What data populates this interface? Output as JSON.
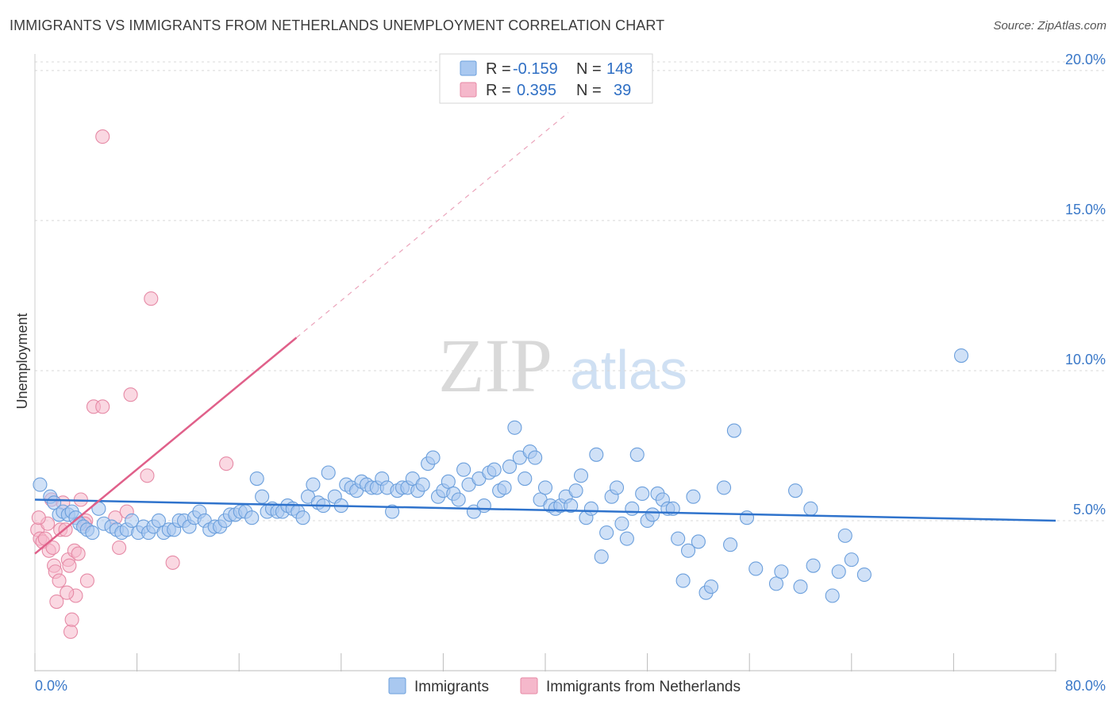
{
  "title": "IMMIGRANTS VS IMMIGRANTS FROM NETHERLANDS UNEMPLOYMENT CORRELATION CHART",
  "source": "Source: ZipAtlas.com",
  "watermark": {
    "zip": "ZIP",
    "atlas": "atlas"
  },
  "legend_top": [
    {
      "r_label": "R =",
      "r_value": "-0.159",
      "n_label": "N =",
      "n_value": "148",
      "color": "#a9c8f0"
    },
    {
      "r_label": "R =",
      "r_value": "0.395",
      "n_label": "N =",
      "n_value": "39",
      "color": "#f5b8cb"
    }
  ],
  "legend_bottom": [
    {
      "label": "Immigrants",
      "color": "#a9c8f0"
    },
    {
      "label": "Immigrants from Netherlands",
      "color": "#f5b8cb"
    }
  ],
  "colors": {
    "blue_fill": "#a9c8f0",
    "blue_stroke": "#6b9fdc",
    "blue_line": "#2f73cc",
    "pink_fill": "#f5b8cb",
    "pink_stroke": "#e68aa6",
    "pink_line": "#e0608a",
    "tick_text": "#3a78c8",
    "grid": "#d8d8d8"
  },
  "chart_data": {
    "type": "scatter",
    "title": "IMMIGRANTS VS IMMIGRANTS FROM NETHERLANDS UNEMPLOYMENT CORRELATION CHART",
    "xlabel": "",
    "ylabel": "Unemployment",
    "xlim": [
      0,
      80
    ],
    "ylim": [
      0,
      20.5
    ],
    "x_tick_labels": [
      "0.0%",
      "80.0%"
    ],
    "y_ticks": [
      5,
      10,
      15,
      20
    ],
    "y_tick_labels": [
      "5.0%",
      "10.0%",
      "15.0%",
      "20.0%"
    ],
    "grid": true,
    "series": [
      {
        "name": "Immigrants",
        "trend": {
          "x0": 0,
          "y0": 5.7,
          "x1": 80,
          "y1": 5.0
        },
        "points": [
          [
            0.4,
            6.2
          ],
          [
            1.2,
            5.8
          ],
          [
            1.5,
            5.6
          ],
          [
            1.9,
            5.2
          ],
          [
            2.2,
            5.3
          ],
          [
            2.6,
            5.2
          ],
          [
            2.9,
            5.3
          ],
          [
            3.2,
            5.1
          ],
          [
            3.5,
            4.9
          ],
          [
            3.8,
            4.8
          ],
          [
            4.1,
            4.7
          ],
          [
            4.5,
            4.6
          ],
          [
            5.0,
            5.4
          ],
          [
            5.4,
            4.9
          ],
          [
            6.0,
            4.8
          ],
          [
            6.4,
            4.7
          ],
          [
            6.8,
            4.6
          ],
          [
            7.2,
            4.7
          ],
          [
            7.6,
            5.0
          ],
          [
            8.1,
            4.6
          ],
          [
            8.5,
            4.8
          ],
          [
            8.9,
            4.6
          ],
          [
            9.3,
            4.8
          ],
          [
            9.7,
            5.0
          ],
          [
            10.1,
            4.6
          ],
          [
            10.5,
            4.7
          ],
          [
            10.9,
            4.7
          ],
          [
            11.3,
            5.0
          ],
          [
            11.7,
            5.0
          ],
          [
            12.1,
            4.8
          ],
          [
            12.5,
            5.1
          ],
          [
            12.9,
            5.3
          ],
          [
            13.3,
            5.0
          ],
          [
            13.7,
            4.7
          ],
          [
            14.1,
            4.8
          ],
          [
            14.5,
            4.8
          ],
          [
            14.9,
            5.0
          ],
          [
            15.3,
            5.2
          ],
          [
            15.7,
            5.2
          ],
          [
            16.1,
            5.3
          ],
          [
            16.5,
            5.3
          ],
          [
            17.0,
            5.1
          ],
          [
            17.4,
            6.4
          ],
          [
            17.8,
            5.8
          ],
          [
            18.2,
            5.3
          ],
          [
            18.6,
            5.4
          ],
          [
            19.0,
            5.3
          ],
          [
            19.4,
            5.3
          ],
          [
            19.8,
            5.5
          ],
          [
            20.2,
            5.4
          ],
          [
            20.6,
            5.3
          ],
          [
            21.0,
            5.1
          ],
          [
            21.4,
            5.8
          ],
          [
            21.8,
            6.2
          ],
          [
            22.2,
            5.6
          ],
          [
            22.6,
            5.5
          ],
          [
            23.0,
            6.6
          ],
          [
            23.5,
            5.8
          ],
          [
            24.0,
            5.5
          ],
          [
            24.4,
            6.2
          ],
          [
            24.8,
            6.1
          ],
          [
            25.2,
            6.0
          ],
          [
            25.6,
            6.3
          ],
          [
            26.0,
            6.2
          ],
          [
            26.4,
            6.1
          ],
          [
            26.8,
            6.1
          ],
          [
            27.2,
            6.4
          ],
          [
            27.6,
            6.1
          ],
          [
            28.0,
            5.3
          ],
          [
            28.4,
            6.0
          ],
          [
            28.8,
            6.1
          ],
          [
            29.2,
            6.1
          ],
          [
            29.6,
            6.4
          ],
          [
            30.0,
            6.0
          ],
          [
            30.4,
            6.2
          ],
          [
            30.8,
            6.9
          ],
          [
            31.2,
            7.1
          ],
          [
            31.6,
            5.8
          ],
          [
            32.0,
            6.0
          ],
          [
            32.4,
            6.3
          ],
          [
            32.8,
            5.9
          ],
          [
            33.2,
            5.7
          ],
          [
            33.6,
            6.7
          ],
          [
            34.0,
            6.2
          ],
          [
            34.4,
            5.3
          ],
          [
            34.8,
            6.4
          ],
          [
            35.2,
            5.5
          ],
          [
            35.6,
            6.6
          ],
          [
            36.0,
            6.7
          ],
          [
            36.4,
            6.0
          ],
          [
            36.8,
            6.1
          ],
          [
            37.2,
            6.8
          ],
          [
            37.6,
            8.1
          ],
          [
            38.0,
            7.1
          ],
          [
            38.4,
            6.4
          ],
          [
            38.8,
            7.3
          ],
          [
            39.2,
            7.1
          ],
          [
            39.6,
            5.7
          ],
          [
            40.0,
            6.1
          ],
          [
            40.4,
            5.5
          ],
          [
            40.8,
            5.4
          ],
          [
            41.2,
            5.5
          ],
          [
            41.6,
            5.8
          ],
          [
            42.0,
            5.5
          ],
          [
            42.4,
            6.0
          ],
          [
            42.8,
            6.5
          ],
          [
            43.2,
            5.1
          ],
          [
            43.6,
            5.4
          ],
          [
            44.0,
            7.2
          ],
          [
            44.4,
            3.8
          ],
          [
            44.8,
            4.6
          ],
          [
            45.2,
            5.8
          ],
          [
            45.6,
            6.1
          ],
          [
            46.0,
            4.9
          ],
          [
            46.4,
            4.4
          ],
          [
            46.8,
            5.4
          ],
          [
            47.2,
            7.2
          ],
          [
            47.6,
            5.9
          ],
          [
            48.0,
            5.0
          ],
          [
            48.4,
            5.2
          ],
          [
            48.8,
            5.9
          ],
          [
            49.2,
            5.7
          ],
          [
            49.6,
            5.4
          ],
          [
            50.0,
            5.4
          ],
          [
            50.4,
            4.4
          ],
          [
            50.8,
            3.0
          ],
          [
            51.2,
            4.0
          ],
          [
            51.6,
            5.8
          ],
          [
            52.0,
            4.3
          ],
          [
            52.6,
            2.6
          ],
          [
            53.0,
            2.8
          ],
          [
            54.0,
            6.1
          ],
          [
            54.5,
            4.2
          ],
          [
            54.8,
            8.0
          ],
          [
            55.8,
            5.1
          ],
          [
            56.5,
            3.4
          ],
          [
            58.1,
            2.9
          ],
          [
            58.5,
            3.3
          ],
          [
            59.6,
            6.0
          ],
          [
            60.0,
            2.8
          ],
          [
            60.8,
            5.4
          ],
          [
            61.0,
            3.5
          ],
          [
            62.5,
            2.5
          ],
          [
            63.0,
            3.3
          ],
          [
            63.5,
            4.5
          ],
          [
            64.0,
            3.7
          ],
          [
            65.0,
            3.2
          ],
          [
            72.6,
            10.5
          ]
        ]
      },
      {
        "name": "Immigrants from Netherlands",
        "trend": {
          "x0": 0,
          "y0": 3.9,
          "x1": 20.5,
          "y1": 11.1,
          "dashed_to": [
            41.8,
            18.6
          ]
        },
        "points": [
          [
            0.2,
            4.7
          ],
          [
            0.4,
            4.4
          ],
          [
            0.6,
            4.3
          ],
          [
            0.8,
            4.4
          ],
          [
            1.0,
            4.9
          ],
          [
            1.1,
            4.0
          ],
          [
            1.3,
            5.7
          ],
          [
            1.5,
            3.5
          ],
          [
            1.6,
            3.3
          ],
          [
            1.7,
            2.3
          ],
          [
            1.9,
            3.0
          ],
          [
            2.0,
            4.7
          ],
          [
            2.2,
            5.6
          ],
          [
            2.4,
            4.7
          ],
          [
            2.6,
            3.7
          ],
          [
            2.7,
            3.5
          ],
          [
            2.8,
            1.3
          ],
          [
            2.9,
            1.7
          ],
          [
            3.1,
            4.0
          ],
          [
            3.2,
            2.5
          ],
          [
            3.4,
            3.9
          ],
          [
            3.6,
            5.7
          ],
          [
            4.0,
            5.0
          ],
          [
            4.1,
            3.0
          ],
          [
            4.6,
            8.8
          ],
          [
            5.3,
            8.8
          ],
          [
            6.3,
            5.1
          ],
          [
            6.6,
            4.1
          ],
          [
            7.2,
            5.3
          ],
          [
            7.5,
            9.2
          ],
          [
            8.8,
            6.5
          ],
          [
            9.1,
            12.4
          ],
          [
            10.8,
            3.6
          ],
          [
            15.0,
            6.9
          ],
          [
            5.3,
            17.8
          ],
          [
            2.5,
            2.6
          ],
          [
            1.4,
            4.1
          ],
          [
            3.9,
            4.9
          ],
          [
            0.3,
            5.1
          ]
        ]
      }
    ]
  }
}
